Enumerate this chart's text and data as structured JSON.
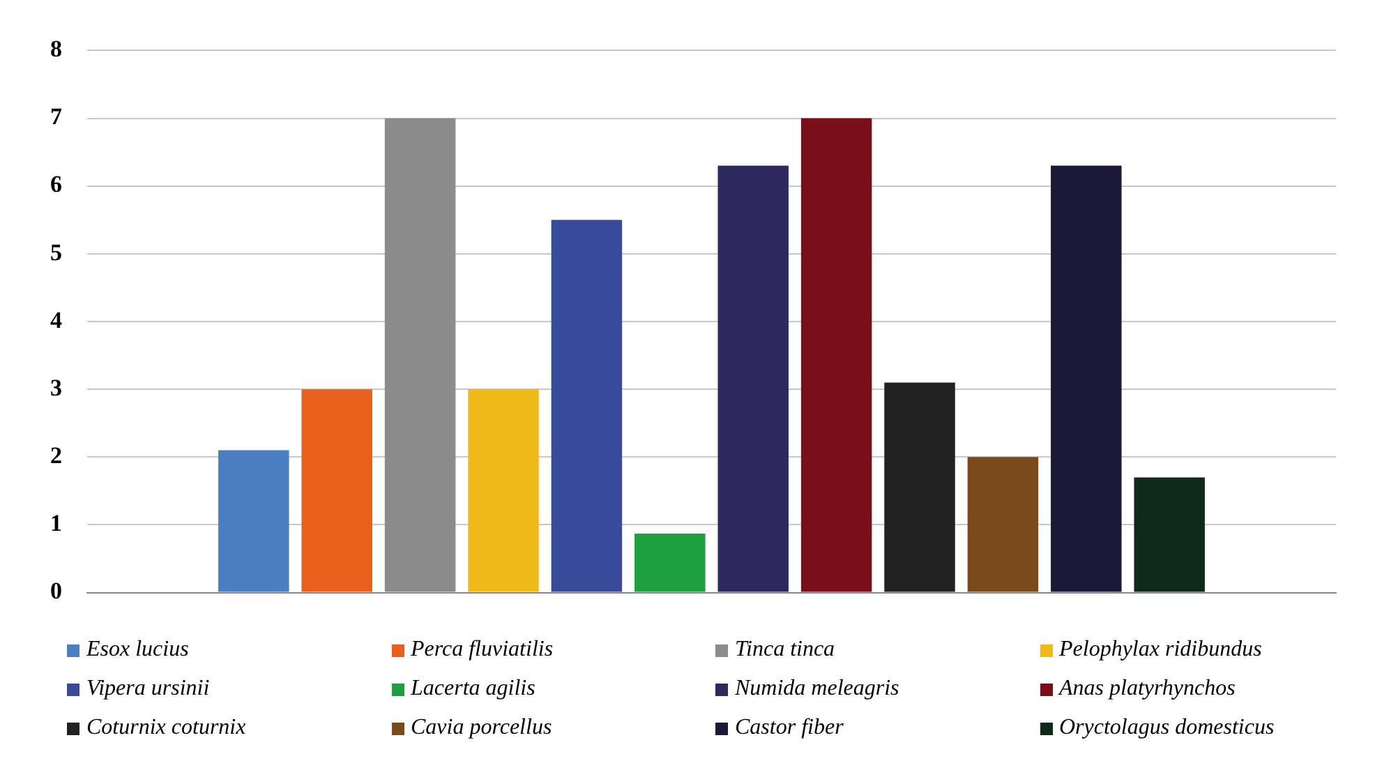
{
  "chart_data": {
    "type": "bar",
    "categories": [
      null
    ],
    "series": [
      {
        "name": "Esox lucius",
        "color": "#4a7fc1",
        "values": [
          2.1
        ]
      },
      {
        "name": "Perca fluviatilis",
        "color": "#e8601c",
        "values": [
          3.0
        ]
      },
      {
        "name": "Tinca tinca",
        "color": "#8c8c8c",
        "values": [
          7.0
        ]
      },
      {
        "name": "Pelophylax ridibundus",
        "color": "#f2b91a",
        "values": [
          3.0
        ]
      },
      {
        "name": "Vipera ursinii",
        "color": "#3a4a9a",
        "values": [
          5.5
        ]
      },
      {
        "name": "Lacerta agilis",
        "color": "#1fa040",
        "values": [
          0.87
        ]
      },
      {
        "name": "Numida meleagris",
        "color": "#2e2a60",
        "values": [
          6.3
        ]
      },
      {
        "name": "Anas platyrhynchos",
        "color": "#7a0f1a",
        "values": [
          7.0
        ]
      },
      {
        "name": "Coturnix coturnix",
        "color": "#222222",
        "values": [
          3.1
        ]
      },
      {
        "name": "Cavia porcellus",
        "color": "#7a4a1a",
        "values": [
          2.0
        ]
      },
      {
        "name": "Castor fiber",
        "color": "#1c1838",
        "values": [
          6.3
        ]
      },
      {
        "name": "Oryctolagus domesticus",
        "color": "#0f2a18",
        "values": [
          1.7
        ]
      }
    ],
    "ylim": [
      0,
      8
    ],
    "yticks": [
      0,
      1,
      2,
      3,
      4,
      5,
      6,
      7,
      8
    ],
    "grid": "y",
    "legend": "bottom"
  }
}
